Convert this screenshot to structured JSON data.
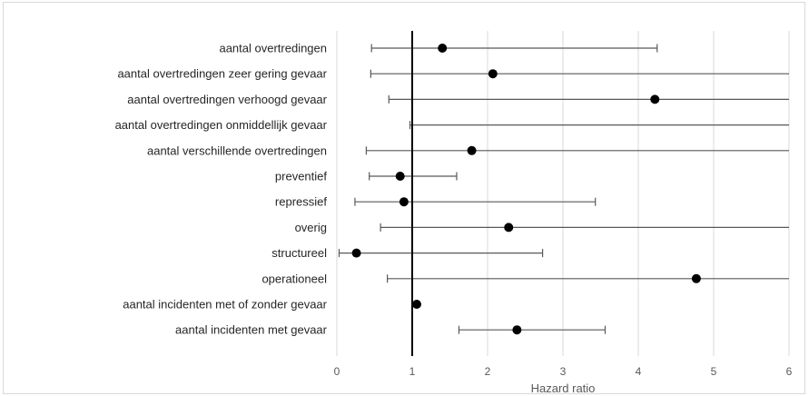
{
  "chart_data": {
    "type": "scatter",
    "title": "",
    "xlabel": "Hazard ratio",
    "ylabel": "",
    "xlim": [
      0,
      6
    ],
    "xticks": [
      "0",
      "1",
      "2",
      "3",
      "4",
      "5",
      "6"
    ],
    "reference_line": 1,
    "grid": "vertical",
    "colors": {
      "grid": "#d9d9d9",
      "marker": "#000000",
      "whisker": "#595959",
      "reference": "#000000"
    },
    "categories": [
      "aantal overtredingen",
      "aantal overtredingen zeer gering gevaar",
      "aantal overtredingen verhoogd gevaar",
      "aantal overtredingen onmiddellijk gevaar",
      "aantal verschillende overtredingen",
      "preventief",
      "repressief",
      "overig",
      "structureel",
      "operationeel",
      "aantal incidenten met of zonder gevaar",
      "aantal incidenten met gevaar"
    ],
    "points": [
      {
        "hr": 1.4,
        "lower": 0.46,
        "upper": 4.25
      },
      {
        "hr": 2.07,
        "lower": 0.45,
        "upper": 6
      },
      {
        "hr": 4.22,
        "lower": 0.69,
        "upper": 6
      },
      {
        "hr": null,
        "lower": 0.97,
        "upper": 6
      },
      {
        "hr": 1.79,
        "lower": 0.39,
        "upper": 6
      },
      {
        "hr": 0.84,
        "lower": 0.43,
        "upper": 1.59
      },
      {
        "hr": 0.89,
        "lower": 0.24,
        "upper": 3.43
      },
      {
        "hr": 2.28,
        "lower": 0.58,
        "upper": 6
      },
      {
        "hr": 0.26,
        "lower": 0.03,
        "upper": 2.73
      },
      {
        "hr": 4.77,
        "lower": 0.67,
        "upper": 6
      },
      {
        "hr": 1.06,
        "lower": null,
        "upper": null
      },
      {
        "hr": 2.39,
        "lower": 1.62,
        "upper": 3.56
      }
    ]
  }
}
